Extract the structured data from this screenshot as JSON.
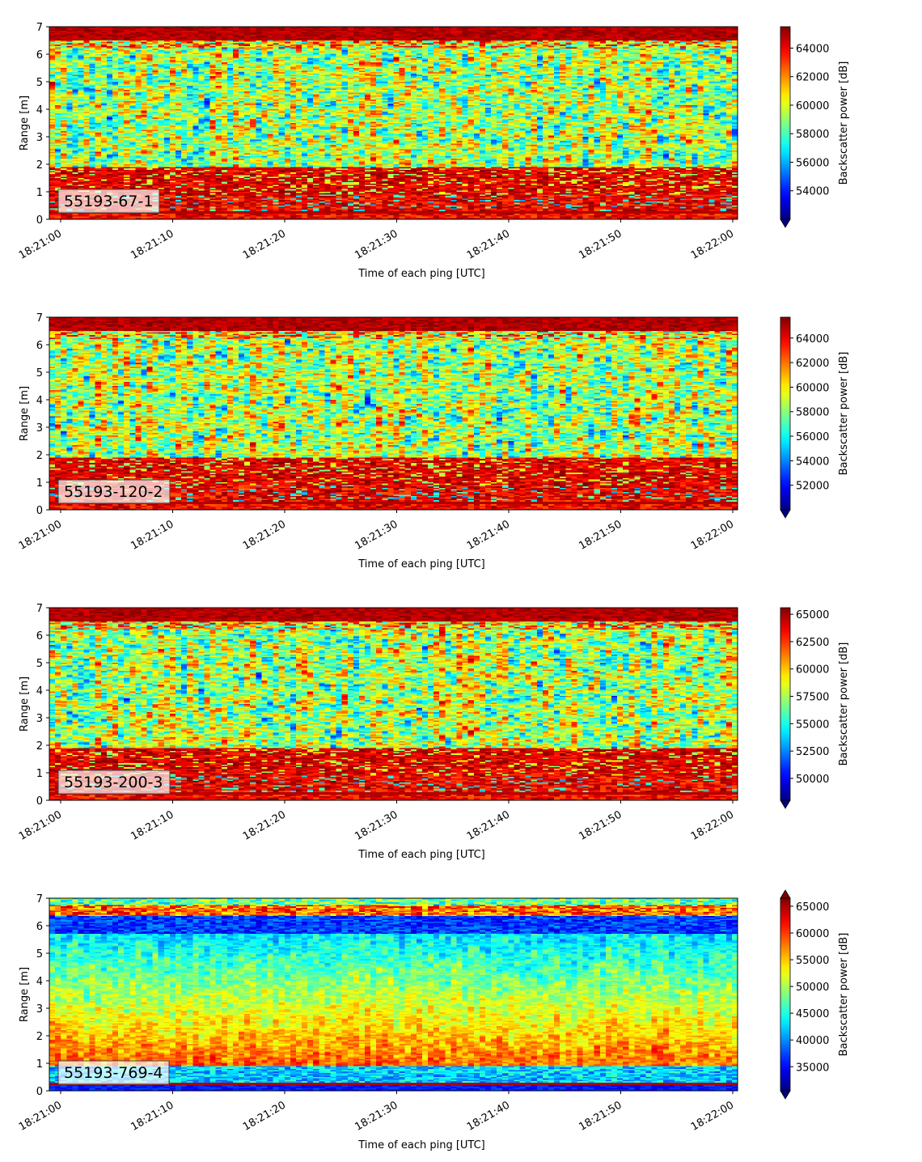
{
  "colormap": "jet",
  "chart_data": [
    {
      "type": "heatmap",
      "label": "55193-67-1",
      "xlabel": "Time of each ping [UTC]",
      "ylabel": "Range [m]",
      "colorbar_label": "Backscatter power [dB]",
      "x_ticks": [
        "18:21:00",
        "18:21:10",
        "18:21:20",
        "18:21:30",
        "18:21:40",
        "18:21:50",
        "18:22:00"
      ],
      "y_ticks": [
        "0",
        "1",
        "2",
        "3",
        "4",
        "5",
        "6",
        "7"
      ],
      "ylim": [
        0,
        7
      ],
      "color_range": [
        52000,
        65500
      ],
      "color_ticks": [
        "54000",
        "56000",
        "58000",
        "60000",
        "62000",
        "64000"
      ],
      "colorbar_extend": "min",
      "pattern": "high-bottom-band"
    },
    {
      "type": "heatmap",
      "label": "55193-120-2",
      "xlabel": "Time of each ping [UTC]",
      "ylabel": "Range [m]",
      "colorbar_label": "Backscatter power [dB]",
      "x_ticks": [
        "18:21:00",
        "18:21:10",
        "18:21:20",
        "18:21:30",
        "18:21:40",
        "18:21:50",
        "18:22:00"
      ],
      "y_ticks": [
        "0",
        "1",
        "2",
        "3",
        "4",
        "5",
        "6",
        "7"
      ],
      "ylim": [
        0,
        7
      ],
      "color_range": [
        50000,
        65700
      ],
      "color_ticks": [
        "52000",
        "54000",
        "56000",
        "58000",
        "60000",
        "62000",
        "64000"
      ],
      "colorbar_extend": "min",
      "pattern": "high-bottom-band"
    },
    {
      "type": "heatmap",
      "label": "55193-200-3",
      "xlabel": "Time of each ping [UTC]",
      "ylabel": "Range [m]",
      "colorbar_label": "Backscatter power [dB]",
      "x_ticks": [
        "18:21:00",
        "18:21:10",
        "18:21:20",
        "18:21:30",
        "18:21:40",
        "18:21:50",
        "18:22:00"
      ],
      "y_ticks": [
        "0",
        "1",
        "2",
        "3",
        "4",
        "5",
        "6",
        "7"
      ],
      "ylim": [
        0,
        7
      ],
      "color_range": [
        48000,
        65600
      ],
      "color_ticks": [
        "50000",
        "52500",
        "55000",
        "57500",
        "60000",
        "62500",
        "65000"
      ],
      "colorbar_extend": "min",
      "pattern": "high-bottom-band"
    },
    {
      "type": "heatmap",
      "label": "55193-769-4",
      "xlabel": "Time of each ping [UTC]",
      "ylabel": "Range [m]",
      "colorbar_label": "Backscatter power [dB]",
      "x_ticks": [
        "18:21:00",
        "18:21:10",
        "18:21:20",
        "18:21:30",
        "18:21:40",
        "18:21:50",
        "18:22:00"
      ],
      "y_ticks": [
        "0",
        "1",
        "2",
        "3",
        "4",
        "5",
        "6",
        "7"
      ],
      "ylim": [
        0,
        7
      ],
      "color_range": [
        30500,
        66500
      ],
      "color_ticks": [
        "35000",
        "40000",
        "45000",
        "50000",
        "55000",
        "60000",
        "65000"
      ],
      "colorbar_extend": "both",
      "pattern": "mid-gradient"
    }
  ]
}
